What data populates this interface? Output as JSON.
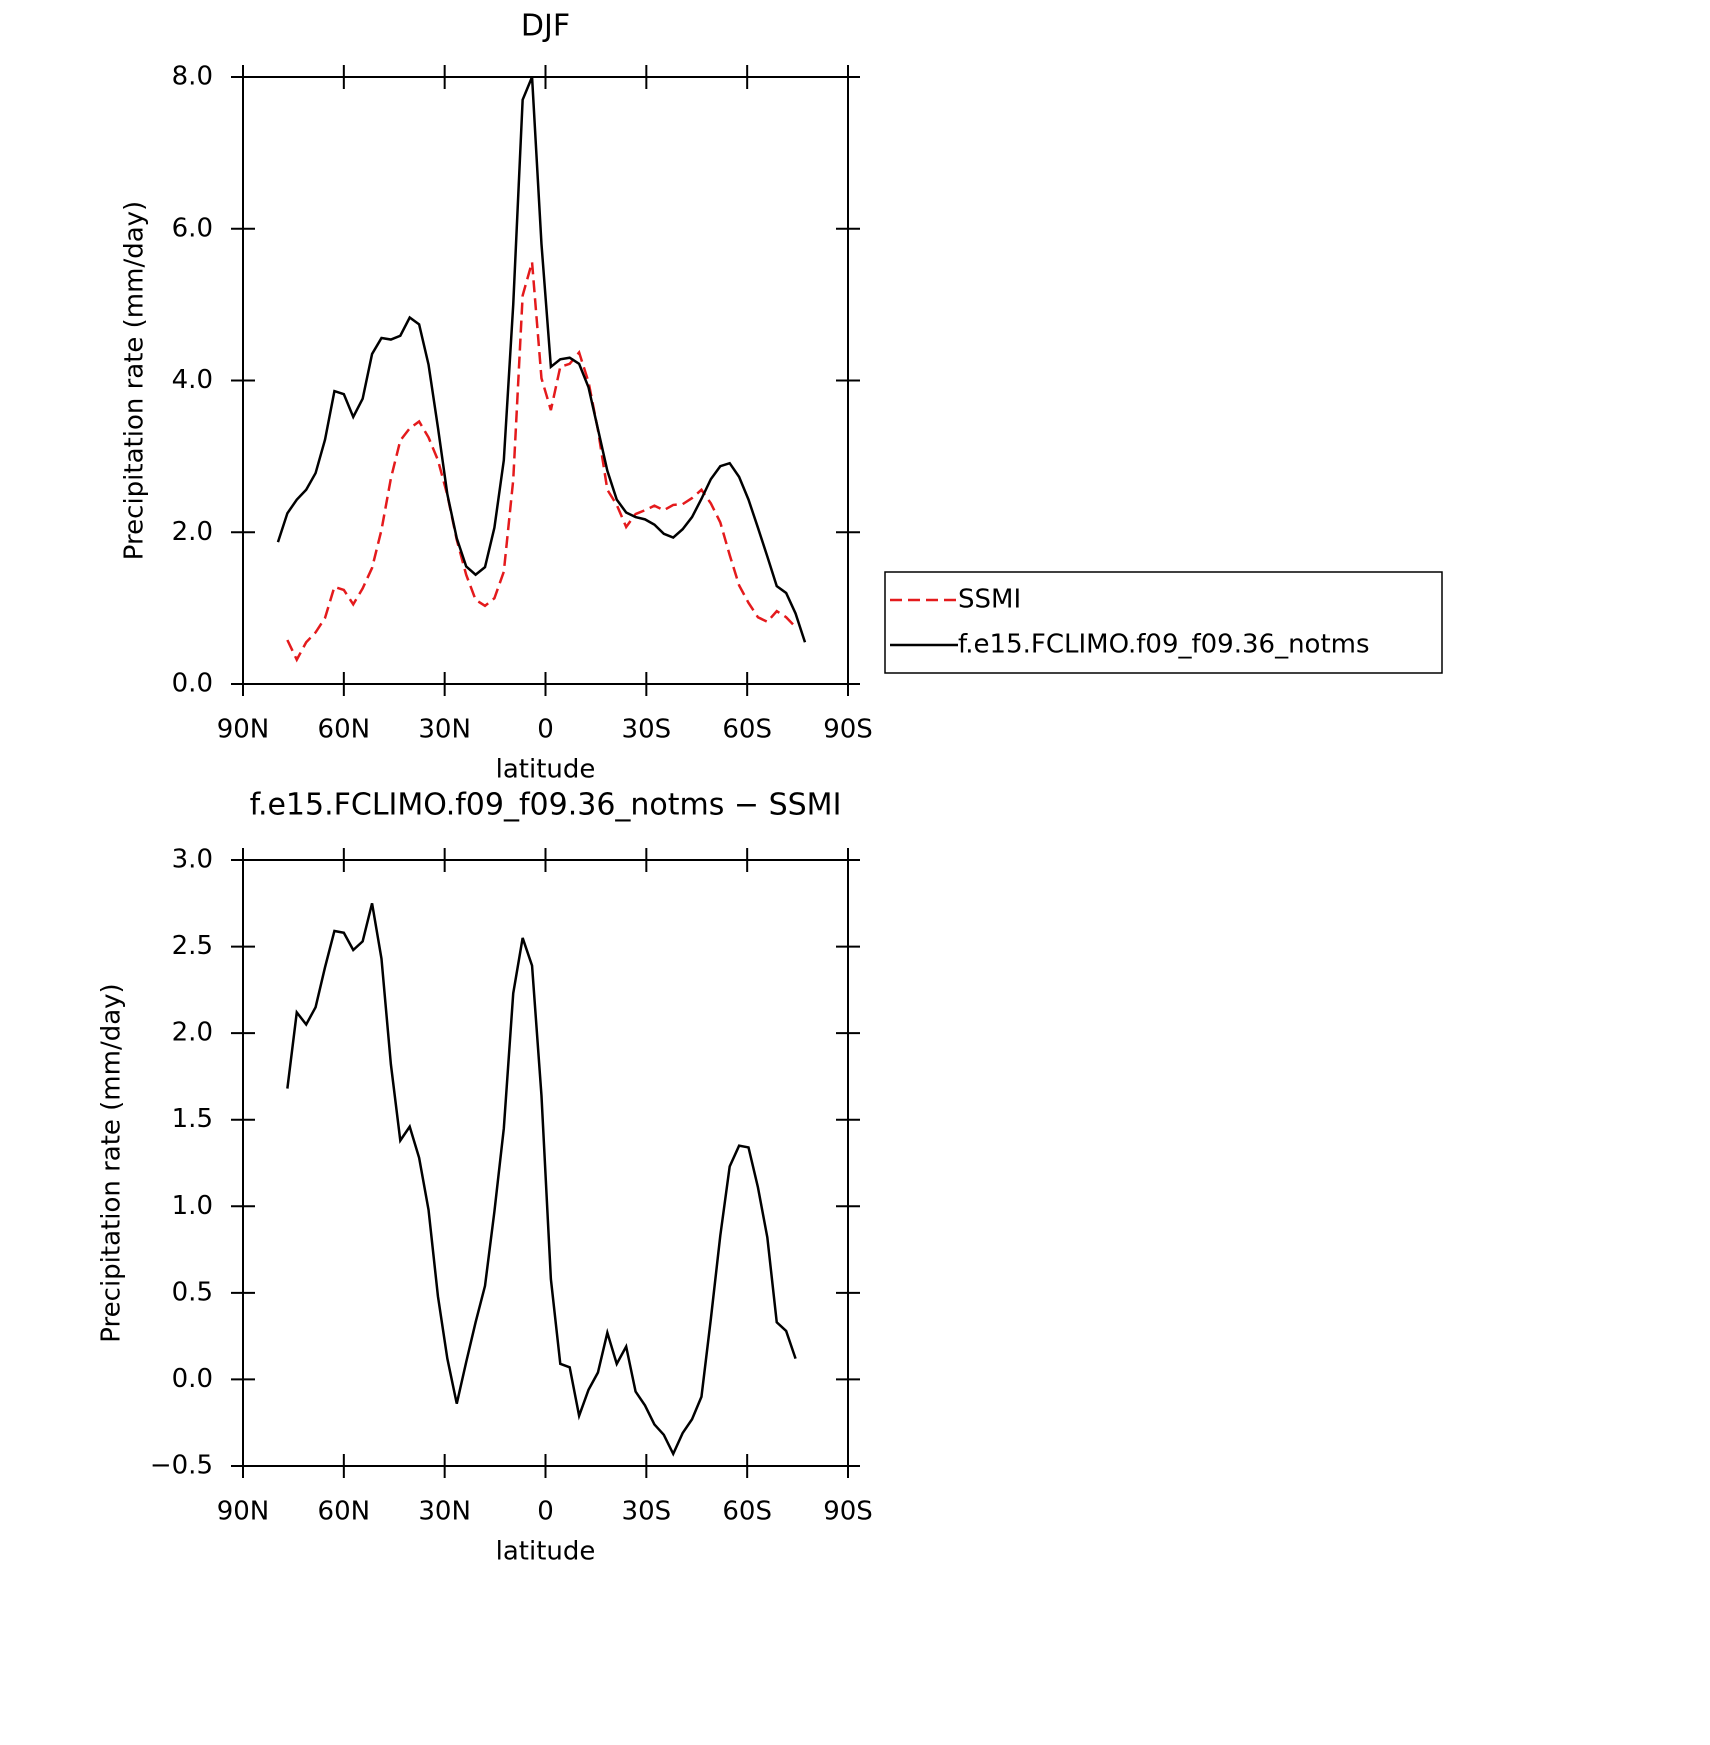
{
  "chart_data": [
    {
      "type": "line",
      "title": "DJF",
      "xlabel": "latitude",
      "ylabel": "Precipitation rate (mm/day)",
      "xlim": [
        90,
        -90
      ],
      "xticks": [
        {
          "value": 90,
          "label": "90N"
        },
        {
          "value": 60,
          "label": "60N"
        },
        {
          "value": 30,
          "label": "30N"
        },
        0,
        {
          "value": -30,
          "label": "30S"
        },
        {
          "value": -60,
          "label": "60S"
        },
        {
          "value": -90,
          "label": "90S"
        }
      ],
      "ylim": [
        0,
        8
      ],
      "yticks": [
        {
          "value": 0,
          "label": "0.0"
        },
        {
          "value": 2,
          "label": "2.0"
        },
        {
          "value": 4,
          "label": "4.0"
        },
        {
          "value": 6,
          "label": "6.0"
        },
        {
          "value": 8,
          "label": "8.0"
        }
      ],
      "x": [
        79.6,
        76.8,
        74,
        71.2,
        68.4,
        65.6,
        62.8,
        60,
        57.2,
        54.4,
        51.6,
        48.8,
        46,
        43.2,
        40.4,
        37.6,
        34.8,
        32,
        29.2,
        26.4,
        23.6,
        20.8,
        18,
        15.2,
        12.4,
        9.6,
        6.8,
        4,
        1.2,
        -1.6,
        -4.4,
        -7.2,
        -10,
        -12.8,
        -15.6,
        -18.4,
        -21.2,
        -24,
        -26.8,
        -29.6,
        -32.4,
        -35.2,
        -38,
        -40.8,
        -43.6,
        -46.4,
        -49.2,
        -52,
        -54.8,
        -57.6,
        -60.4,
        -63.2,
        -66,
        -68.8,
        -71.6,
        -74.4,
        -77.2
      ],
      "legend": "right",
      "series": [
        {
          "name": "SSMI",
          "color": "#e41a1c",
          "dash": true,
          "values": [
            null,
            0.58,
            0.32,
            0.55,
            0.68,
            0.87,
            1.28,
            1.24,
            1.05,
            1.26,
            1.53,
            2.03,
            2.71,
            3.21,
            3.37,
            3.46,
            3.25,
            2.95,
            2.49,
            1.9,
            1.44,
            1.11,
            1.03,
            1.13,
            1.48,
            2.69,
            5.12,
            5.56,
            4.03,
            3.61,
            4.18,
            4.22,
            4.37,
            3.98,
            3.35,
            2.56,
            2.36,
            2.07,
            2.24,
            2.29,
            2.35,
            2.29,
            2.36,
            2.37,
            2.45,
            2.56,
            2.38,
            2.13,
            1.7,
            1.3,
            1.07,
            0.88,
            0.82,
            0.96,
            0.88,
            0.75,
            null
          ]
        },
        {
          "name": "f.e15.FCLIMO.f09_f09.36_notms",
          "color": "#000000",
          "dash": false,
          "values": [
            1.87,
            2.25,
            2.43,
            2.56,
            2.78,
            3.22,
            3.86,
            3.82,
            3.52,
            3.76,
            4.35,
            4.56,
            4.54,
            4.59,
            4.83,
            4.74,
            4.21,
            3.38,
            2.5,
            1.92,
            1.55,
            1.44,
            1.54,
            2.06,
            2.95,
            5.0,
            7.7,
            8.0,
            5.8,
            4.18,
            4.28,
            4.3,
            4.22,
            3.91,
            3.36,
            2.81,
            2.43,
            2.26,
            2.2,
            2.17,
            2.1,
            1.98,
            1.93,
            2.04,
            2.2,
            2.44,
            2.7,
            2.87,
            2.91,
            2.73,
            2.43,
            2.06,
            1.68,
            1.29,
            1.2,
            0.93,
            0.55
          ]
        }
      ]
    },
    {
      "type": "line",
      "title": "f.e15.FCLIMO.f09_f09.36_notms − SSMI",
      "xlabel": "latitude",
      "ylabel": "Precipitation rate (mm/day)",
      "xlim": [
        90,
        -90
      ],
      "xticks": [
        {
          "value": 90,
          "label": "90N"
        },
        {
          "value": 60,
          "label": "60N"
        },
        {
          "value": 30,
          "label": "30N"
        },
        0,
        {
          "value": -30,
          "label": "30S"
        },
        {
          "value": -60,
          "label": "60S"
        },
        {
          "value": -90,
          "label": "90S"
        }
      ],
      "ylim": [
        -0.5,
        3
      ],
      "yticks": [
        {
          "value": -0.5,
          "label": "−0.5"
        },
        {
          "value": 0,
          "label": "0.0"
        },
        0.5,
        {
          "value": 1,
          "label": "1.0"
        },
        1.5,
        {
          "value": 2,
          "label": "2.0"
        },
        2.5,
        {
          "value": 3,
          "label": "3.0"
        }
      ],
      "x": [
        79.6,
        76.8,
        74,
        71.2,
        68.4,
        65.6,
        62.8,
        60,
        57.2,
        54.4,
        51.6,
        48.8,
        46,
        43.2,
        40.4,
        37.6,
        34.8,
        32,
        29.2,
        26.4,
        23.6,
        20.8,
        18,
        15.2,
        12.4,
        9.6,
        6.8,
        4,
        1.2,
        -1.6,
        -4.4,
        -7.2,
        -10,
        -12.8,
        -15.6,
        -18.4,
        -21.2,
        -24,
        -26.8,
        -29.6,
        -32.4,
        -35.2,
        -38,
        -40.8,
        -43.6,
        -46.4,
        -49.2,
        -52,
        -54.8,
        -57.6,
        -60.4,
        -63.2,
        -66,
        -68.8,
        -71.6,
        -74.4,
        -77.2
      ],
      "series": [
        {
          "color": "#000000",
          "dash": false,
          "values": [
            null,
            1.68,
            2.12,
            2.05,
            2.15,
            2.38,
            2.59,
            2.58,
            2.48,
            2.53,
            2.75,
            2.43,
            1.82,
            1.38,
            1.46,
            1.28,
            0.98,
            0.48,
            0.12,
            -0.14,
            0.1,
            0.33,
            0.54,
            0.97,
            1.45,
            2.23,
            2.55,
            2.39,
            1.64,
            0.58,
            0.09,
            0.07,
            -0.21,
            -0.06,
            0.04,
            0.27,
            0.09,
            0.19,
            -0.07,
            -0.15,
            -0.26,
            -0.32,
            -0.43,
            -0.31,
            -0.23,
            -0.1,
            0.35,
            0.83,
            1.23,
            1.35,
            1.34,
            1.11,
            0.82,
            0.33,
            0.28,
            0.12,
            null
          ]
        }
      ]
    }
  ]
}
